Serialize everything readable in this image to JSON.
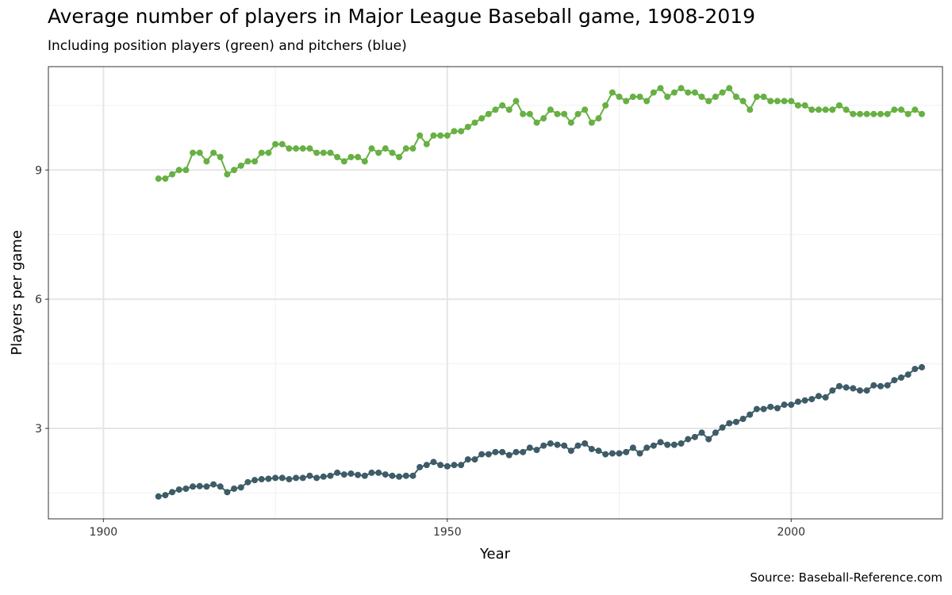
{
  "chart_data": {
    "type": "line",
    "title": "Average number of players in Major League Baseball game, 1908-2019",
    "subtitle": "Including position players (green) and pitchers (blue)",
    "caption": "Source: Baseball-Reference.com",
    "xlabel": "Year",
    "ylabel": "Players per game",
    "xlim": [
      1892,
      2022
    ],
    "ylim": [
      0.9,
      11.4
    ],
    "x_ticks": [
      1900,
      1950,
      2000
    ],
    "y_ticks": [
      3,
      6,
      9
    ],
    "grid": true,
    "legend": "none",
    "x": [
      1908,
      1909,
      1910,
      1911,
      1912,
      1913,
      1914,
      1915,
      1916,
      1917,
      1918,
      1919,
      1920,
      1921,
      1922,
      1923,
      1924,
      1925,
      1926,
      1927,
      1928,
      1929,
      1930,
      1931,
      1932,
      1933,
      1934,
      1935,
      1936,
      1937,
      1938,
      1939,
      1940,
      1941,
      1942,
      1943,
      1944,
      1945,
      1946,
      1947,
      1948,
      1949,
      1950,
      1951,
      1952,
      1953,
      1954,
      1955,
      1956,
      1957,
      1958,
      1959,
      1960,
      1961,
      1962,
      1963,
      1964,
      1965,
      1966,
      1967,
      1968,
      1969,
      1970,
      1971,
      1972,
      1973,
      1974,
      1975,
      1976,
      1977,
      1978,
      1979,
      1980,
      1981,
      1982,
      1983,
      1984,
      1985,
      1986,
      1987,
      1988,
      1989,
      1990,
      1991,
      1992,
      1993,
      1994,
      1995,
      1996,
      1997,
      1998,
      1999,
      2000,
      2001,
      2002,
      2003,
      2004,
      2005,
      2006,
      2007,
      2008,
      2009,
      2010,
      2011,
      2012,
      2013,
      2014,
      2015,
      2016,
      2017,
      2018,
      2019
    ],
    "series": [
      {
        "color": "#67b043",
        "values": [
          8.8,
          8.8,
          8.9,
          9.0,
          9.0,
          9.4,
          9.4,
          9.2,
          9.4,
          9.3,
          8.9,
          9.0,
          9.1,
          9.2,
          9.2,
          9.4,
          9.4,
          9.6,
          9.6,
          9.5,
          9.5,
          9.5,
          9.5,
          9.4,
          9.4,
          9.4,
          9.3,
          9.2,
          9.3,
          9.3,
          9.2,
          9.5,
          9.4,
          9.5,
          9.4,
          9.3,
          9.5,
          9.5,
          9.8,
          9.6,
          9.8,
          9.8,
          9.8,
          9.9,
          9.9,
          10.0,
          10.1,
          10.2,
          10.3,
          10.4,
          10.5,
          10.4,
          10.6,
          10.3,
          10.3,
          10.1,
          10.2,
          10.4,
          10.3,
          10.3,
          10.1,
          10.3,
          10.4,
          10.1,
          10.2,
          10.5,
          10.8,
          10.7,
          10.6,
          10.7,
          10.7,
          10.6,
          10.8,
          10.9,
          10.7,
          10.8,
          10.9,
          10.8,
          10.8,
          10.7,
          10.6,
          10.7,
          10.8,
          10.9,
          10.7,
          10.6,
          10.4,
          10.7,
          10.7,
          10.6,
          10.6,
          10.6,
          10.6,
          10.5,
          10.5,
          10.4,
          10.4,
          10.4,
          10.4,
          10.5,
          10.4,
          10.3,
          10.3,
          10.3,
          10.3,
          10.3,
          10.3,
          10.4,
          10.4,
          10.3,
          10.4,
          10.3
        ]
      },
      {
        "color": "#3e5c67",
        "values": [
          1.42,
          1.45,
          1.52,
          1.58,
          1.6,
          1.65,
          1.66,
          1.65,
          1.7,
          1.65,
          1.52,
          1.6,
          1.63,
          1.75,
          1.8,
          1.82,
          1.83,
          1.85,
          1.85,
          1.82,
          1.85,
          1.85,
          1.9,
          1.85,
          1.88,
          1.9,
          1.97,
          1.93,
          1.95,
          1.92,
          1.9,
          1.97,
          1.97,
          1.93,
          1.9,
          1.88,
          1.9,
          1.9,
          2.1,
          2.15,
          2.22,
          2.15,
          2.12,
          2.15,
          2.15,
          2.28,
          2.28,
          2.4,
          2.4,
          2.45,
          2.45,
          2.38,
          2.45,
          2.45,
          2.55,
          2.5,
          2.6,
          2.65,
          2.62,
          2.6,
          2.48,
          2.6,
          2.65,
          2.52,
          2.48,
          2.4,
          2.42,
          2.42,
          2.45,
          2.55,
          2.42,
          2.55,
          2.6,
          2.68,
          2.62,
          2.62,
          2.65,
          2.75,
          2.8,
          2.9,
          2.75,
          2.9,
          3.02,
          3.12,
          3.15,
          3.22,
          3.32,
          3.45,
          3.45,
          3.5,
          3.47,
          3.55,
          3.55,
          3.62,
          3.65,
          3.68,
          3.75,
          3.72,
          3.88,
          3.98,
          3.95,
          3.93,
          3.88,
          3.88,
          4.0,
          3.98,
          4.0,
          4.12,
          4.18,
          4.25,
          4.38,
          4.42
        ]
      }
    ]
  }
}
